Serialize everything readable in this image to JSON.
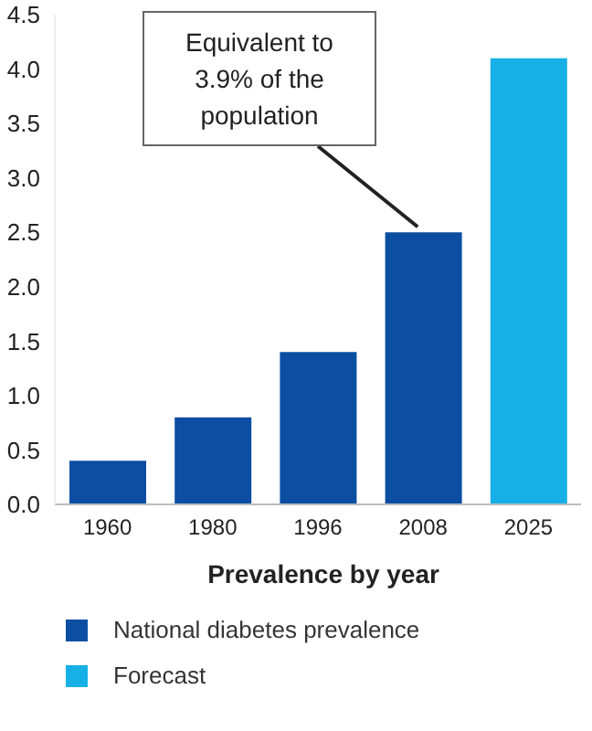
{
  "chart_data": {
    "type": "bar",
    "xlabel": "Prevalence by year",
    "categories": [
      "1960",
      "1980",
      "1996",
      "2008",
      "2025"
    ],
    "series": [
      {
        "name": "National diabetes prevalence",
        "color": "#0b4ea2",
        "values": [
          0.4,
          0.8,
          1.4,
          2.5,
          null
        ]
      },
      {
        "name": "Forecast",
        "color": "#17b0e6",
        "values": [
          null,
          null,
          null,
          null,
          4.1
        ]
      }
    ],
    "stacked": true,
    "ylim": [
      0,
      4.5
    ],
    "yticks": [
      {
        "value": 0,
        "label": "0.0"
      },
      {
        "value": 0.5,
        "label": "0.5"
      },
      {
        "value": 1,
        "label": "1.0"
      },
      {
        "value": 1.5,
        "label": "1.5"
      },
      {
        "value": 2,
        "label": "2.0"
      },
      {
        "value": 2.5,
        "label": "2.5"
      },
      {
        "value": 3,
        "label": "3.0"
      },
      {
        "value": 3.5,
        "label": "3.5"
      },
      {
        "value": 4,
        "label": "4.0"
      },
      {
        "value": 4.5,
        "label": "4.5"
      }
    ],
    "annotations": [
      {
        "text": "Equivalent to 3.9% of the population",
        "x": "2008",
        "y": 2.5
      }
    ],
    "grid": false,
    "legend": "bottom"
  }
}
